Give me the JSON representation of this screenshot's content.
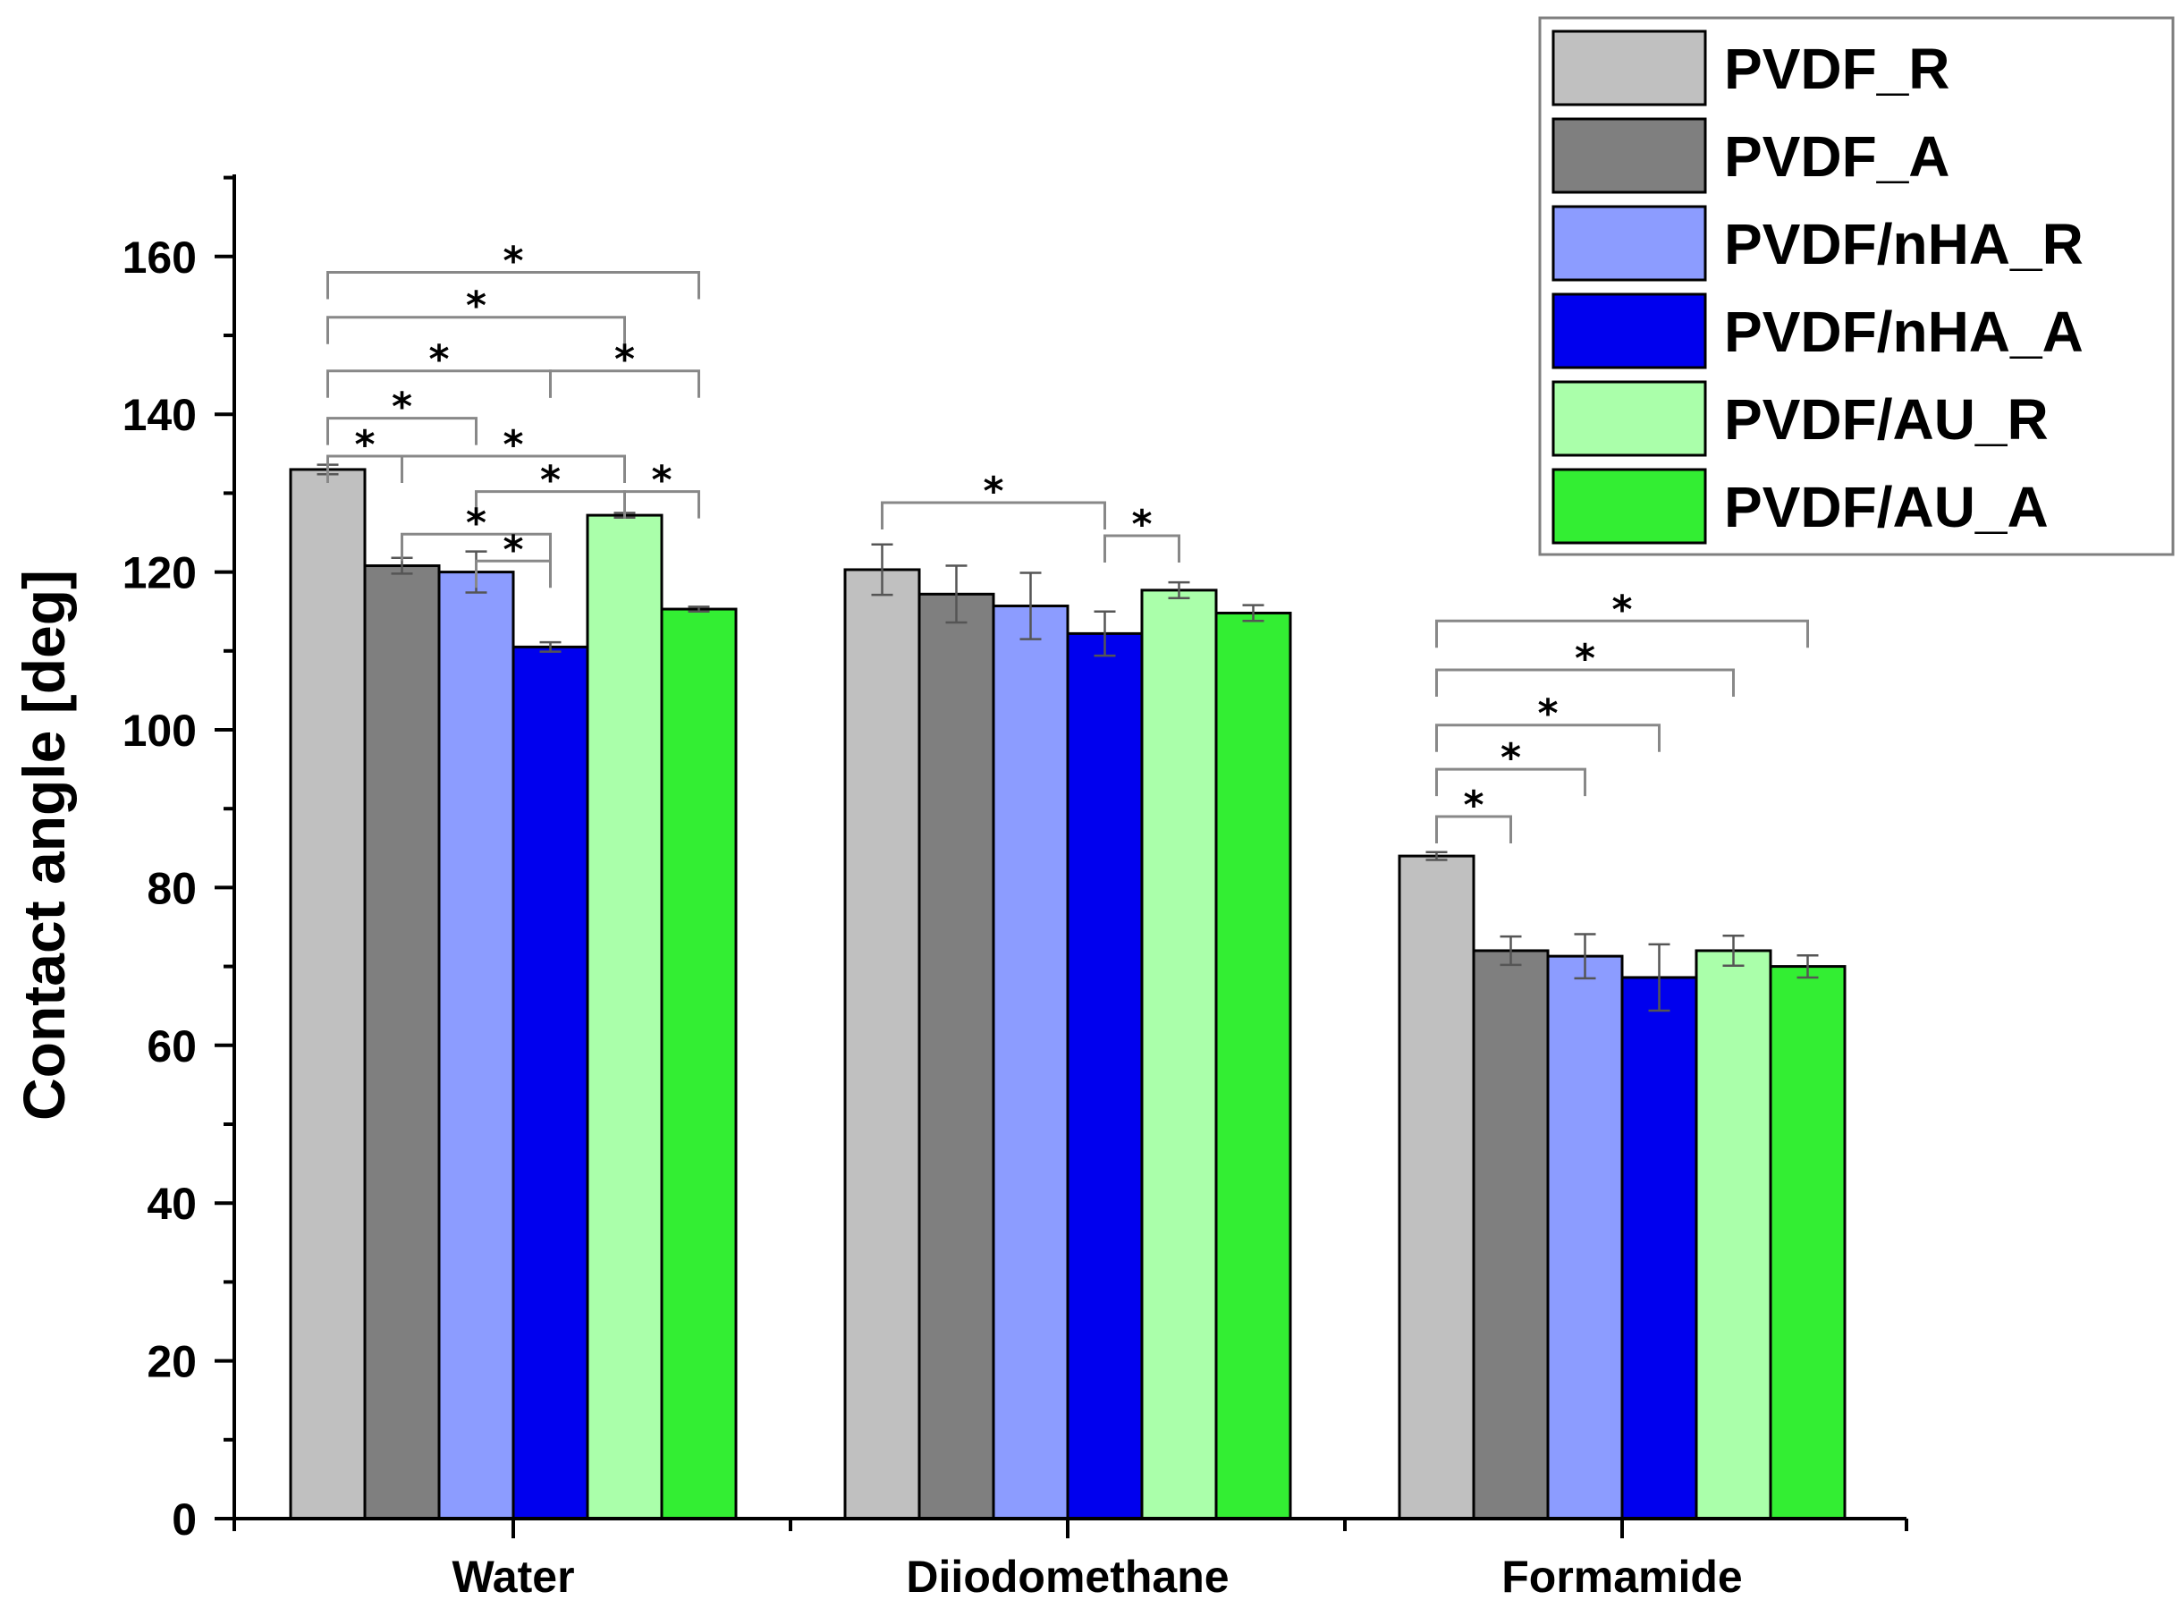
{
  "chart_data": {
    "type": "bar",
    "title": "",
    "xlabel": "",
    "ylabel": "Contact angle [deg]",
    "ylim": [
      0,
      170
    ],
    "yticks": [
      0,
      20,
      40,
      60,
      80,
      100,
      120,
      140,
      160
    ],
    "categories": [
      "Water",
      "Diiodomethane",
      "Formamide"
    ],
    "legend_position": "top-right",
    "grid": false,
    "series": [
      {
        "name": "PVDF_R",
        "color": "#c0c0c0",
        "values": [
          133,
          120.3,
          84
        ],
        "errors": [
          0.6,
          3.2,
          0.5
        ]
      },
      {
        "name": "PVDF_A",
        "color": "#7f7f7f",
        "values": [
          120.8,
          117.2,
          72
        ],
        "errors": [
          1.0,
          3.6,
          1.8
        ]
      },
      {
        "name": "PVDF/nHA_R",
        "color": "#8c9cff",
        "values": [
          120,
          115.7,
          71.3
        ],
        "errors": [
          2.6,
          4.2,
          2.8
        ]
      },
      {
        "name": "PVDF/nHA_A",
        "color": "#0000ee",
        "values": [
          110.5,
          112.2,
          68.6
        ],
        "errors": [
          0.6,
          2.8,
          4.2
        ]
      },
      {
        "name": "PVDF/AU_R",
        "color": "#aaffaa",
        "values": [
          127.2,
          117.7,
          72
        ],
        "errors": [
          0.3,
          1.0,
          1.9
        ]
      },
      {
        "name": "PVDF/AU_A",
        "color": "#33ee33",
        "values": [
          115.3,
          114.8,
          70
        ],
        "errors": [
          0.3,
          1.0,
          1.4
        ]
      }
    ],
    "significance": [
      {
        "category": 0,
        "from": 0,
        "to": 5,
        "level": 158,
        "label": "*"
      },
      {
        "category": 0,
        "from": 0,
        "to": 4,
        "level": 152.3,
        "label": "*"
      },
      {
        "category": 0,
        "from": 0,
        "to": 3,
        "level": 145.5,
        "label": "*"
      },
      {
        "category": 0,
        "from": 3,
        "to": 5,
        "level": 145.5,
        "label": "*"
      },
      {
        "category": 0,
        "from": 0,
        "to": 2,
        "level": 139.5,
        "label": "*"
      },
      {
        "category": 0,
        "from": 0,
        "to": 1,
        "level": 134.7,
        "label": "*"
      },
      {
        "category": 0,
        "from": 1,
        "to": 4,
        "level": 134.7,
        "label": "*"
      },
      {
        "category": 0,
        "from": 2,
        "to": 4,
        "level": 130.2,
        "label": "*"
      },
      {
        "category": 0,
        "from": 4,
        "to": 5,
        "level": 130.2,
        "label": "*"
      },
      {
        "category": 0,
        "from": 1,
        "to": 3,
        "level": 124.8,
        "label": "*"
      },
      {
        "category": 0,
        "from": 2,
        "to": 3,
        "level": 121.4,
        "label": "*"
      },
      {
        "category": 1,
        "from": 0,
        "to": 3,
        "level": 128.8,
        "label": "*"
      },
      {
        "category": 1,
        "from": 3,
        "to": 4,
        "level": 124.6,
        "label": "*"
      },
      {
        "category": 2,
        "from": 0,
        "to": 5,
        "level": 113.8,
        "label": "*"
      },
      {
        "category": 2,
        "from": 0,
        "to": 4,
        "level": 107.6,
        "label": "*"
      },
      {
        "category": 2,
        "from": 0,
        "to": 3,
        "level": 100.6,
        "label": "*"
      },
      {
        "category": 2,
        "from": 0,
        "to": 2,
        "level": 95,
        "label": "*"
      },
      {
        "category": 2,
        "from": 0,
        "to": 1,
        "level": 89,
        "label": "*"
      }
    ]
  }
}
